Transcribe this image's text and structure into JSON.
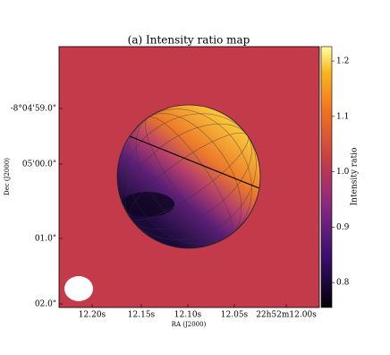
{
  "chart_data": {
    "type": "image",
    "title": "(a) Intensity ratio map",
    "xlabel": "RA (J2000)",
    "ylabel": "Dec (J2000)",
    "xtick_labels": [
      "12.20s",
      "12.15s",
      "12.10s",
      "12.05s",
      "22h52m12.00s"
    ],
    "ytick_labels": [
      "-8°04'59.0\"",
      "05'00.0\"",
      "01.0\"",
      "02.0\""
    ],
    "colorbar": {
      "label": "Intensity ratio",
      "lim": [
        0.755,
        1.226
      ],
      "ticks": [
        0.8,
        0.9,
        {
          "value": 1.0,
          "label": "1.0"
        },
        1.1,
        1.2
      ]
    }
  }
}
